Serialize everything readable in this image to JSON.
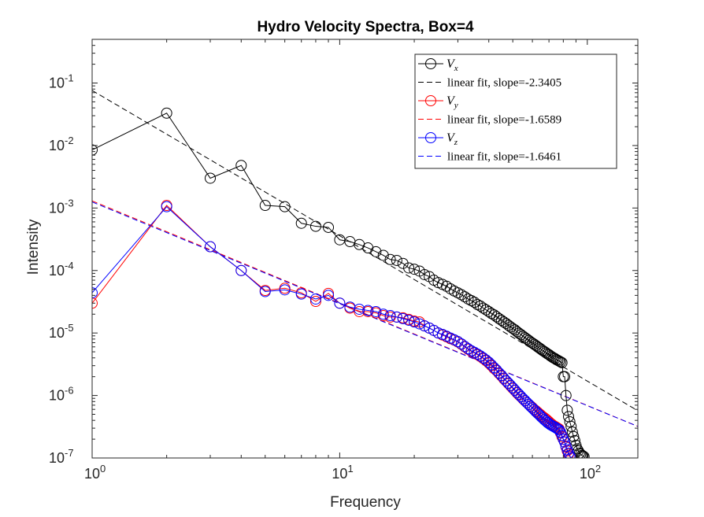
{
  "chart_data": {
    "type": "scatter",
    "title": "Hydro Velocity Spectra, Box=4",
    "xlabel": "Frequency",
    "ylabel": "Intensity",
    "xscale": "log",
    "yscale": "log",
    "xlim": [
      1,
      160
    ],
    "ylim": [
      1e-07,
      0.5
    ],
    "x_ticks": [
      1,
      10,
      100
    ],
    "x_tick_labels": [
      {
        "base": "10",
        "exp": "0"
      },
      {
        "base": "10",
        "exp": "1"
      },
      {
        "base": "10",
        "exp": "2"
      }
    ],
    "y_ticks": [
      1e-07,
      1e-06,
      1e-05,
      0.0001,
      0.001,
      0.01,
      0.1
    ],
    "y_tick_labels": [
      {
        "base": "10",
        "exp": "-7"
      },
      {
        "base": "10",
        "exp": "-6"
      },
      {
        "base": "10",
        "exp": "-5"
      },
      {
        "base": "10",
        "exp": "-4"
      },
      {
        "base": "10",
        "exp": "-3"
      },
      {
        "base": "10",
        "exp": "-2"
      },
      {
        "base": "10",
        "exp": "-1"
      }
    ],
    "grid": false,
    "box": true,
    "legend_position": "top-right",
    "legend": [
      {
        "kind": "series",
        "base": "V",
        "sub": "x",
        "color": "#000000"
      },
      {
        "kind": "fit",
        "text": "linear fit, slope=-2.3405",
        "color": "#000000"
      },
      {
        "kind": "series",
        "base": "V",
        "sub": "y",
        "color": "#ff0000"
      },
      {
        "kind": "fit",
        "text": "linear fit, slope=-1.6589",
        "color": "#ff0000"
      },
      {
        "kind": "series",
        "base": "V",
        "sub": "z",
        "color": "#0000ff"
      },
      {
        "kind": "fit",
        "text": "linear fit, slope=-1.6461",
        "color": "#0000ff"
      }
    ],
    "series": [
      {
        "name": "V_x",
        "color": "#000000",
        "marker": "circle",
        "x": [
          1,
          2,
          3,
          4,
          5,
          6,
          7,
          8,
          9,
          10,
          11,
          12,
          13,
          14,
          15,
          16,
          17,
          18,
          19,
          20,
          21,
          22,
          23,
          24,
          25,
          26,
          27,
          28,
          29,
          30,
          31,
          32,
          33,
          34,
          35,
          36,
          37,
          38,
          39,
          40,
          41,
          42,
          43,
          44,
          45,
          46,
          47,
          48,
          49,
          50,
          51,
          52,
          53,
          54,
          55,
          56,
          57,
          58,
          59,
          60,
          61,
          62,
          63,
          64,
          65,
          66,
          67,
          68,
          69,
          70,
          71,
          72,
          73,
          74,
          75,
          76,
          77,
          78,
          79,
          80,
          81,
          82,
          83,
          84,
          85,
          86,
          87,
          88,
          89,
          90,
          91,
          92,
          93,
          94,
          95,
          96,
          97
        ],
        "y": [
          0.0085,
          0.033,
          0.003,
          0.0048,
          0.0011,
          0.00105,
          0.00057,
          0.00051,
          0.00049,
          0.00031,
          0.00029,
          0.00026,
          0.00023,
          0.0002,
          0.000175,
          0.00015,
          0.000145,
          0.00013,
          0.00011,
          0.000105,
          9.8e-05,
          8.6e-05,
          8e-05,
          7e-05,
          6.4e-05,
          6e-05,
          5.6e-05,
          5.1e-05,
          4.7e-05,
          4.4e-05,
          4.1e-05,
          3.8e-05,
          3.5e-05,
          3.3e-05,
          3.1e-05,
          2.85e-05,
          2.7e-05,
          2.5e-05,
          2.35e-05,
          2.2e-05,
          2.05e-05,
          1.95e-05,
          1.82e-05,
          1.7e-05,
          1.6e-05,
          1.5e-05,
          1.42e-05,
          1.33e-05,
          1.25e-05,
          1.18e-05,
          1.12e-05,
          1.05e-05,
          9.9e-06,
          9.4e-06,
          8.9e-06,
          8.4e-06,
          8e-06,
          7.6e-06,
          7.2e-06,
          6.9e-06,
          6.6e-06,
          6.3e-06,
          6e-06,
          5.75e-06,
          5.5e-06,
          5.25e-06,
          5.05e-06,
          4.85e-06,
          4.65e-06,
          4.5e-06,
          4.3e-06,
          4.15e-06,
          4e-06,
          3.9e-06,
          3.75e-06,
          3.65e-06,
          3.55e-06,
          3.45e-06,
          3.35e-06,
          2e-06,
          2e-06,
          1e-06,
          5.8e-07,
          4.6e-07,
          3.8e-07,
          3.2e-07,
          2.6e-07,
          2.2e-07,
          1.9e-07,
          1.6e-07,
          1.4e-07,
          1.3e-07,
          1.2e-07,
          1.15e-07,
          1.1e-07,
          1.08e-07,
          1.05e-07
        ]
      },
      {
        "name": "V_y",
        "color": "#ff0000",
        "marker": "circle",
        "x": [
          1,
          2,
          3,
          4,
          5,
          6,
          7,
          8,
          9,
          10,
          11,
          12,
          13,
          14,
          15,
          16,
          17,
          18,
          19,
          20,
          21,
          22,
          23,
          24,
          25,
          26,
          27,
          28,
          29,
          30,
          31,
          32,
          33,
          34,
          35,
          36,
          37,
          38,
          39,
          40,
          41,
          42,
          43,
          44,
          45,
          46,
          47,
          48,
          49,
          50,
          51,
          52,
          53,
          54,
          55,
          56,
          57,
          58,
          59,
          60,
          61,
          62,
          63,
          64,
          65,
          66,
          67,
          68,
          69,
          70,
          71,
          72,
          73,
          74,
          75,
          76,
          77,
          78,
          79,
          80,
          81,
          82,
          83,
          84,
          85,
          86
        ],
        "y": [
          3e-05,
          0.0011,
          0.00024,
          0.0001,
          4.8e-05,
          5.2e-05,
          4.4e-05,
          3.2e-05,
          4.3e-05,
          3e-05,
          2.5e-05,
          2.2e-05,
          2.2e-05,
          2.1e-05,
          1.9e-05,
          1.8e-05,
          1.8e-05,
          1.75e-05,
          1.65e-05,
          1.55e-05,
          1.5e-05,
          1.3e-05,
          1.2e-05,
          1.1e-05,
          1e-05,
          9.3e-06,
          8.7e-06,
          8.1e-06,
          7.7e-06,
          7.2e-06,
          6.6e-06,
          6e-06,
          5.5e-06,
          5.1e-06,
          4.8e-06,
          4.5e-06,
          4.2e-06,
          3.9e-06,
          3.6e-06,
          3.3e-06,
          3e-06,
          2.7e-06,
          2.5e-06,
          2.25e-06,
          2.05e-06,
          1.85e-06,
          1.7e-06,
          1.55e-06,
          1.42e-06,
          1.3e-06,
          1.2e-06,
          1.1e-06,
          1.02e-06,
          9.5e-07,
          8.8e-07,
          8.2e-07,
          7.7e-07,
          7.2e-07,
          6.8e-07,
          6.4e-07,
          6e-07,
          5.7e-07,
          5.4e-07,
          5.1e-07,
          4.85e-07,
          4.6e-07,
          4.4e-07,
          4.2e-07,
          4e-07,
          3.8e-07,
          3.6e-07,
          3.45e-07,
          3.3e-07,
          3.2e-07,
          3.1e-07,
          3e-07,
          2.9e-07,
          2.5e-07,
          2.2e-07,
          2e-07,
          1.8e-07,
          1.5e-07,
          1.3e-07,
          1.15e-07,
          1.05e-07,
          1e-07
        ]
      },
      {
        "name": "V_z",
        "color": "#0000ff",
        "marker": "circle",
        "x": [
          1,
          2,
          3,
          4,
          5,
          6,
          7,
          8,
          9,
          10,
          11,
          12,
          13,
          14,
          15,
          16,
          17,
          18,
          19,
          20,
          21,
          22,
          23,
          24,
          25,
          26,
          27,
          28,
          29,
          30,
          31,
          32,
          33,
          34,
          35,
          36,
          37,
          38,
          39,
          40,
          41,
          42,
          43,
          44,
          45,
          46,
          47,
          48,
          49,
          50,
          51,
          52,
          53,
          54,
          55,
          56,
          57,
          58,
          59,
          60,
          61,
          62,
          63,
          64,
          65,
          66,
          67,
          68,
          69,
          70,
          71,
          72,
          73,
          74,
          75,
          76,
          77,
          78,
          79,
          80,
          81,
          82,
          83,
          84,
          85,
          86
        ],
        "y": [
          4.4e-05,
          0.00105,
          0.00024,
          0.0001,
          4.6e-05,
          4.9e-05,
          4.2e-05,
          3.5e-05,
          4e-05,
          3e-05,
          2.6e-05,
          2.4e-05,
          2.3e-05,
          2.2e-05,
          2e-05,
          1.9e-05,
          1.8e-05,
          1.7e-05,
          1.6e-05,
          1.5e-05,
          1.4e-05,
          1.3e-05,
          1.2e-05,
          1.1e-05,
          1e-05,
          9.5e-06,
          8.9e-06,
          8.3e-06,
          7.8e-06,
          7.3e-06,
          6.7e-06,
          6.1e-06,
          5.6e-06,
          5.2e-06,
          4.9e-06,
          4.6e-06,
          4.3e-06,
          4e-06,
          3.7e-06,
          3.4e-06,
          3.1e-06,
          2.8e-06,
          2.55e-06,
          2.3e-06,
          2.1e-06,
          1.9e-06,
          1.72e-06,
          1.58e-06,
          1.45e-06,
          1.33e-06,
          1.22e-06,
          1.12e-06,
          1.04e-06,
          9.6e-07,
          8.9e-07,
          8.3e-07,
          7.7e-07,
          7.2e-07,
          6.7e-07,
          6.3e-07,
          5.9e-07,
          5.5e-07,
          5.2e-07,
          4.9e-07,
          4.6e-07,
          4.35e-07,
          4.1e-07,
          3.9e-07,
          3.7e-07,
          3.55e-07,
          3.4e-07,
          3.3e-07,
          3.2e-07,
          3.1e-07,
          3e-07,
          2.9e-07,
          2.8e-07,
          2.6e-07,
          2.3e-07,
          2e-07,
          1.8e-07,
          1.55e-07,
          1.35e-07,
          1.2e-07,
          1.08e-07,
          1e-07
        ]
      }
    ],
    "fit_lines": [
      {
        "name": "linear fit, slope=-2.3405",
        "color": "#000000",
        "x": [
          1,
          160
        ],
        "y": [
          0.076,
          5.7e-07
        ]
      },
      {
        "name": "linear fit, slope=-1.6589",
        "color": "#ff0000",
        "x": [
          1,
          160
        ],
        "y": [
          0.0013,
          3.2e-07
        ]
      },
      {
        "name": "linear fit, slope=-1.6461",
        "color": "#0000ff",
        "x": [
          1,
          160
        ],
        "y": [
          0.00125,
          3.2e-07
        ]
      }
    ]
  }
}
